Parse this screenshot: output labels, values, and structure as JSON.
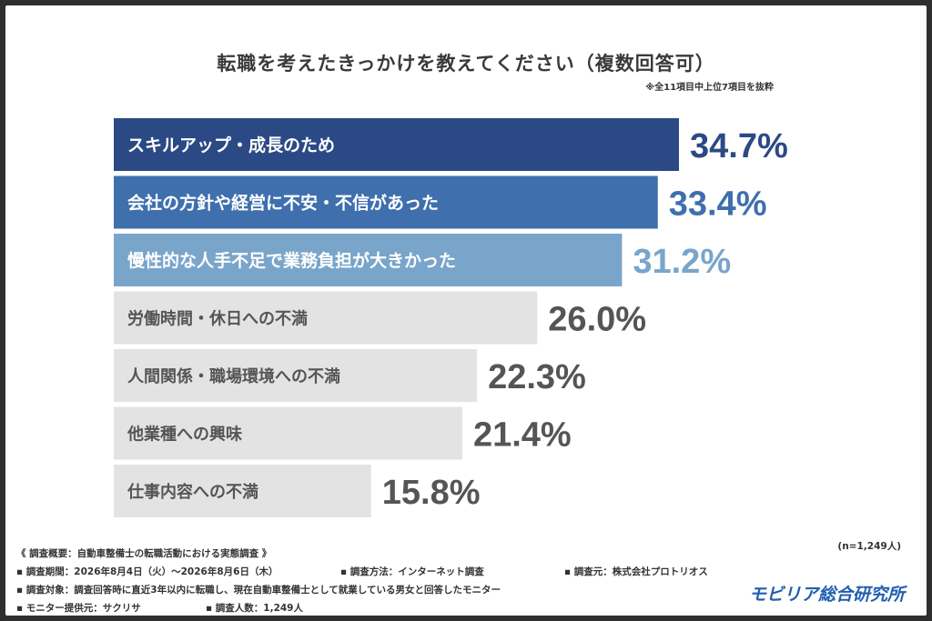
{
  "title": "転職を考えたきっかけを教えてください（複数回答可）",
  "note": "※全11項目中上位7項目を抜粋",
  "sample": "(n=1,249人)",
  "chart_data": {
    "type": "bar",
    "orientation": "horizontal",
    "categories": [
      "スキルアップ・成長のため",
      "会社の方針や経営に不安・不信があった",
      "慢性的な人手不足で業務負担が大きかった",
      "労働時間・休日への不満",
      "人間関係・職場環境への不満",
      "他業種への興味",
      "仕事内容への不満"
    ],
    "values": [
      34.7,
      33.4,
      31.2,
      26.0,
      22.3,
      21.4,
      15.8
    ],
    "value_labels": [
      "34.7%",
      "33.4%",
      "31.2%",
      "26.0%",
      "22.3%",
      "21.4%",
      "15.8%"
    ],
    "bar_colors": [
      "#2b4a85",
      "#3f6fad",
      "#7aa5ca",
      "#e3e3e3",
      "#e3e3e3",
      "#e3e3e3",
      "#e3e3e3"
    ],
    "label_colors": [
      "#ffffff",
      "#ffffff",
      "#ffffff",
      "#555555",
      "#555555",
      "#555555",
      "#555555"
    ],
    "value_colors": [
      "#2b4a85",
      "#3f6fad",
      "#7aa5ca",
      "#555555",
      "#555555",
      "#555555",
      "#555555"
    ],
    "xlim": [
      0,
      34.7
    ],
    "grid": false
  },
  "footer": {
    "overview": "《 調査概要：自動車整備士の転職活動における実態調査 》",
    "period": "▪ 調査期間：2026年8月4日（火）〜2026年8月6日（木）",
    "method": "▪ 調査方法：インターネット調査",
    "org": "▪ 調査元：株式会社プロトリオス",
    "target": "▪ 調査対象：調査回答時に直近3年以内に転職し、現在自動車整備士として就業している男女と回答したモニター",
    "provider": "▪ モニター提供元：サクリサ",
    "count": "▪ 調査人数：1,249人"
  },
  "brand": "モビリア総合研究所"
}
